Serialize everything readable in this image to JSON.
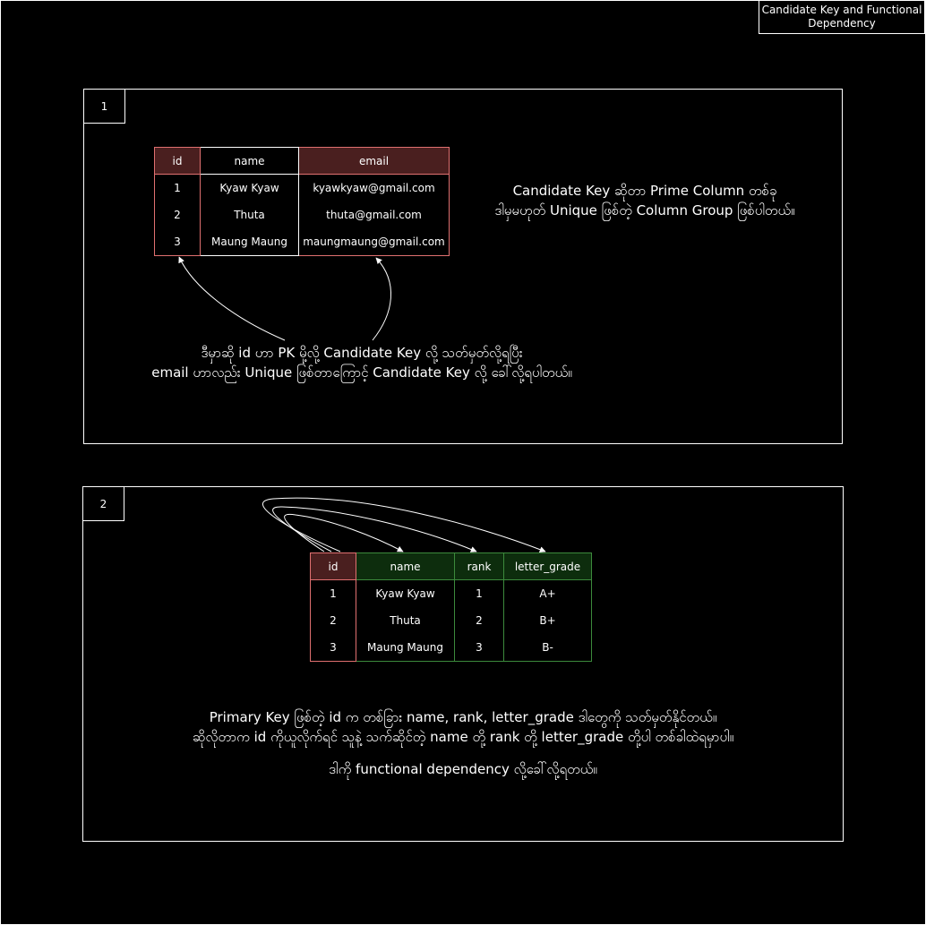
{
  "header": {
    "title": "Candidate Key and Functional Dependency"
  },
  "section1": {
    "number": "1",
    "table": {
      "columns": [
        {
          "header": "id",
          "values": [
            "1",
            "2",
            "3"
          ]
        },
        {
          "header": "name",
          "values": [
            "Kyaw Kyaw",
            "Thuta",
            "Maung Maung"
          ]
        },
        {
          "header": "email",
          "values": [
            "kyawkyaw@gmail.com",
            "thuta@gmail.com",
            "maungmaung@gmail.com"
          ]
        }
      ]
    },
    "definition": {
      "line1": "Candidate Key ဆိုတာ Prime Column တစ်ခု",
      "line2": "ဒါမှမဟုတ် Unique ဖြစ်တဲ့ Column Group ဖြစ်ပါတယ်။"
    },
    "explanation": {
      "line1": "ဒီမှာဆို id ဟာ PK မို့လို့ Candidate Key လို့ သတ်မှတ်လို့ရပြီး",
      "line2": "email ဟာလည်း Unique ဖြစ်တာကြောင့် Candidate Key လို့ ခေါ်လို့ရပါတယ်။"
    }
  },
  "section2": {
    "number": "2",
    "table": {
      "columns": [
        {
          "header": "id",
          "values": [
            "1",
            "2",
            "3"
          ]
        },
        {
          "header": "name",
          "values": [
            "Kyaw Kyaw",
            "Thuta",
            "Maung Maung"
          ]
        },
        {
          "header": "rank",
          "values": [
            "1",
            "2",
            "3"
          ]
        },
        {
          "header": "letter_grade",
          "values": [
            "A+",
            "B+",
            "B-"
          ]
        }
      ]
    },
    "explanation": {
      "line1": "Primary Key ဖြစ်တဲ့ id က တစ်ခြား name, rank, letter_grade ဒါတွေကို သတ်မှတ်နိုင်တယ်။",
      "line2": "ဆိုလိုတာက id ကိုယူလိုက်ရင် သူနဲ့ သက်ဆိုင်တဲ့ name တို့ rank တို့ letter_grade တို့ပါ တစ်ခါထဲရမှာပါ။",
      "line3": "ဒါကို functional dependency လို့ခေါ်လို့ရတယ်။"
    }
  },
  "colors": {
    "pk_header_fill": "#4a1f1f",
    "pk_border": "#e07070",
    "fd_header_fill": "#0d2d0d",
    "fd_border": "#3c8a3c"
  }
}
